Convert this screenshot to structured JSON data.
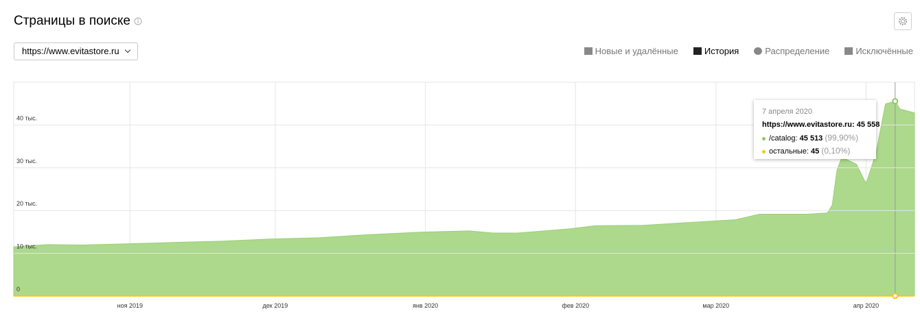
{
  "header": {
    "title": "Страницы в поиске",
    "site_select": "https://www.evitastore.ru",
    "tabs": [
      "Новые и удалённые",
      "История",
      "Распределение",
      "Исключённые"
    ]
  },
  "chart_data": {
    "type": "area",
    "x": [
      "2019-10-08",
      "2019-10-15",
      "2019-10-22",
      "2019-11-01",
      "2019-11-10",
      "2019-11-20",
      "2019-11-30",
      "2019-12-10",
      "2019-12-20",
      "2019-12-31",
      "2020-01-10",
      "2020-01-15",
      "2020-01-20",
      "2020-01-31",
      "2020-02-05",
      "2020-02-15",
      "2020-02-25",
      "2020-03-05",
      "2020-03-10",
      "2020-03-20",
      "2020-03-24",
      "2020-03-25",
      "2020-03-26",
      "2020-03-27",
      "2020-03-30",
      "2020-04-01",
      "2020-04-03",
      "2020-04-05",
      "2020-04-07",
      "2020-04-08",
      "2020-04-11"
    ],
    "series": [
      {
        "color": "#f5c518",
        "values": [
          45,
          45,
          45,
          45,
          45,
          45,
          45,
          45,
          45,
          45,
          45,
          45,
          45,
          45,
          45,
          45,
          45,
          45,
          45,
          45,
          45,
          45,
          45,
          45,
          45,
          45,
          45,
          45,
          45,
          45,
          45
        ]
      },
      {
        "color": "#acd98c",
        "values": [
          11500,
          12000,
          11900,
          12200,
          12500,
          12800,
          13300,
          13600,
          14300,
          14900,
          15200,
          14700,
          14700,
          15700,
          16400,
          16500,
          17200,
          17800,
          19100,
          19100,
          19400,
          21200,
          29500,
          32400,
          30800,
          26300,
          33200,
          44900,
          45513,
          43700,
          42800
        ]
      }
    ],
    "xlim": [
      "2019-10-08",
      "2020-04-11"
    ],
    "xticks": [
      {
        "value": "2019-11-01",
        "label": "ноя 2019"
      },
      {
        "value": "2019-12-01",
        "label": "дек 2019"
      },
      {
        "value": "2020-01-01",
        "label": "янв 2020"
      },
      {
        "value": "2020-02-01",
        "label": "фев 2020"
      },
      {
        "value": "2020-03-01",
        "label": "мар 2020"
      },
      {
        "value": "2020-04-01",
        "label": "апр 2020"
      }
    ],
    "ylim": [
      0,
      50000
    ],
    "yticks": [
      0,
      {
        "value": 10000,
        "label": "10 тыс."
      },
      {
        "value": 20000,
        "label": "20 тыс."
      },
      {
        "value": 30000,
        "label": "30 тыс."
      },
      {
        "value": 40000,
        "label": "40 тыс."
      }
    ],
    "grid": true
  },
  "tooltip": {
    "date": "7 апреля 2020",
    "site": "https://www.evitastore.ru:",
    "total": "45 558",
    "rows": [
      {
        "label": "/catalog:",
        "value": "45 513",
        "share": "(99,90%)"
      },
      {
        "label": "остальные:",
        "value": "45",
        "share": "(0,10%)"
      }
    ]
  }
}
